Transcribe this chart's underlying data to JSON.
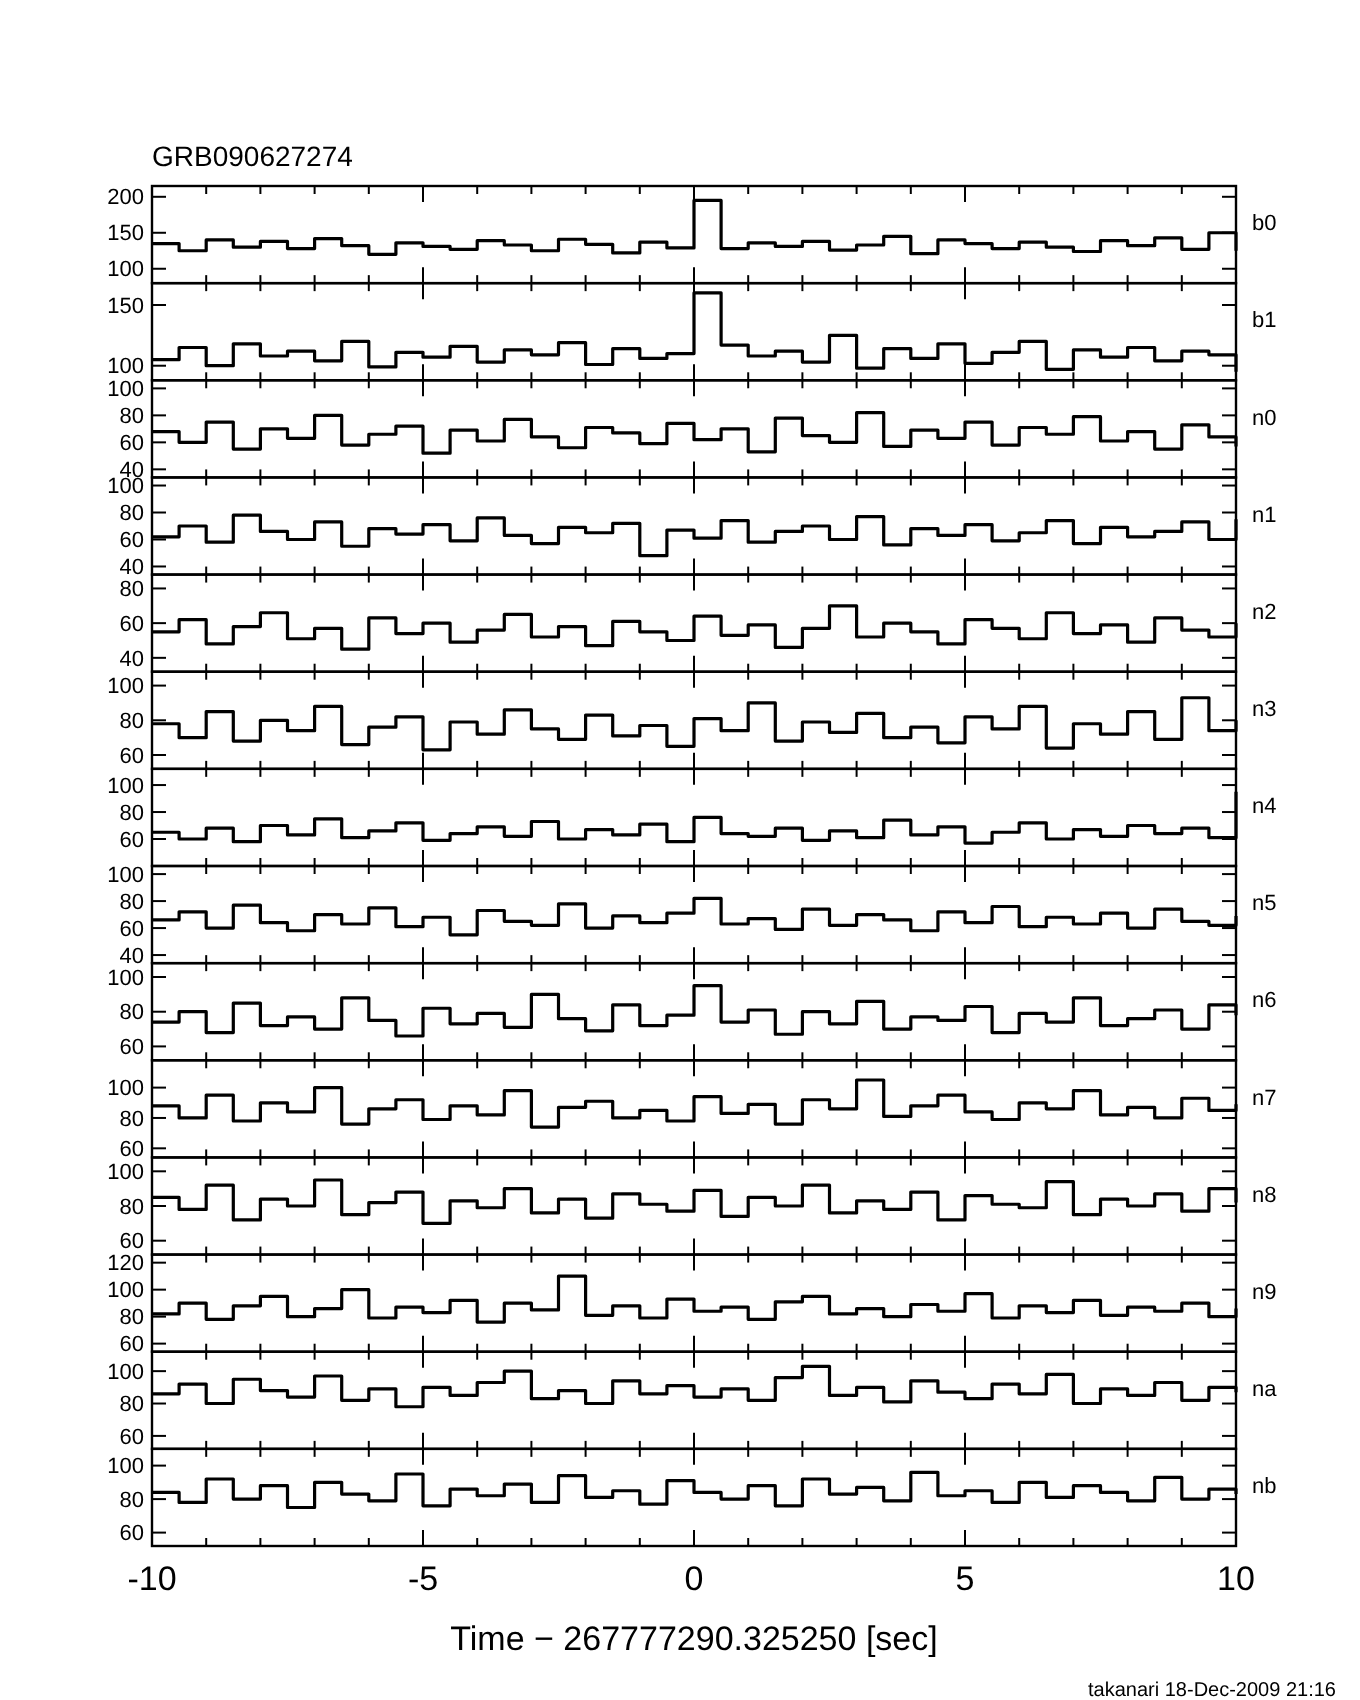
{
  "chart_data": [
    {
      "type": "step",
      "title": "GRB090627274",
      "ylabel": "b0",
      "xlim": [
        -10,
        10
      ],
      "ylim": [
        80,
        215
      ],
      "yticks": [
        100,
        150,
        200
      ],
      "tick_labels": "y",
      "xticks": [
        -10,
        {
          "value": -9,
          "label": null
        },
        {
          "value": -8,
          "label": null
        },
        {
          "value": -7,
          "label": null
        },
        {
          "value": -6,
          "label": null
        },
        -5,
        {
          "value": -4,
          "label": null
        },
        {
          "value": -3,
          "label": null
        },
        {
          "value": -2,
          "label": null
        },
        {
          "value": -1,
          "label": null
        },
        0,
        {
          "value": 1,
          "label": null
        },
        {
          "value": 2,
          "label": null
        },
        {
          "value": 3,
          "label": null
        },
        {
          "value": 4,
          "label": null
        },
        5,
        {
          "value": 6,
          "label": null
        },
        {
          "value": 7,
          "label": null
        },
        {
          "value": 8,
          "label": null
        },
        {
          "value": 9,
          "label": null
        },
        10
      ],
      "x": [
        -10,
        -9.5,
        -9,
        -8.5,
        -8,
        -7.5,
        -7,
        -6.5,
        -6,
        -5.5,
        -5,
        -4.5,
        -4,
        -3.5,
        -3,
        -2.5,
        -2,
        -1.5,
        -1,
        -0.5,
        0,
        0.5,
        1,
        1.5,
        2,
        2.5,
        3,
        3.5,
        4,
        4.5,
        5,
        5.5,
        6,
        6.5,
        7,
        7.5,
        8,
        8.5,
        9,
        9.5,
        10
      ],
      "values": [
        135,
        125,
        140,
        130,
        138,
        128,
        142,
        132,
        120,
        136,
        131,
        127,
        139,
        133,
        125,
        141,
        134,
        122,
        137,
        129,
        195,
        128,
        136,
        131,
        138,
        126,
        133,
        145,
        121,
        140,
        135,
        128,
        137,
        130,
        124,
        139,
        132,
        143,
        127,
        150,
        125
      ]
    },
    {
      "type": "step",
      "ylabel": "b1",
      "xlim": [
        -10,
        10
      ],
      "ylim": [
        88,
        168
      ],
      "yticks": [
        100,
        150
      ],
      "tick_labels": "y",
      "xticks": [
        -10,
        {
          "value": -9,
          "label": null
        },
        {
          "value": -8,
          "label": null
        },
        {
          "value": -7,
          "label": null
        },
        {
          "value": -6,
          "label": null
        },
        -5,
        {
          "value": -4,
          "label": null
        },
        {
          "value": -3,
          "label": null
        },
        {
          "value": -2,
          "label": null
        },
        {
          "value": -1,
          "label": null
        },
        0,
        {
          "value": 1,
          "label": null
        },
        {
          "value": 2,
          "label": null
        },
        {
          "value": 3,
          "label": null
        },
        {
          "value": 4,
          "label": null
        },
        5,
        {
          "value": 6,
          "label": null
        },
        {
          "value": 7,
          "label": null
        },
        {
          "value": 8,
          "label": null
        },
        {
          "value": 9,
          "label": null
        },
        10
      ],
      "x": [
        -10,
        -9.5,
        -9,
        -8.5,
        -8,
        -7.5,
        -7,
        -6.5,
        -6,
        -5.5,
        -5,
        -4.5,
        -4,
        -3.5,
        -3,
        -2.5,
        -2,
        -1.5,
        -1,
        -0.5,
        0,
        0.5,
        1,
        1.5,
        2,
        2.5,
        3,
        3.5,
        4,
        4.5,
        5,
        5.5,
        6,
        6.5,
        7,
        7.5,
        8,
        8.5,
        9,
        9.5,
        10
      ],
      "values": [
        105,
        115,
        100,
        118,
        108,
        112,
        104,
        120,
        99,
        111,
        107,
        116,
        103,
        113,
        109,
        119,
        101,
        114,
        106,
        110,
        160,
        117,
        108,
        112,
        103,
        125,
        98,
        114,
        106,
        118,
        102,
        111,
        120,
        97,
        113,
        107,
        115,
        104,
        112,
        109,
        95
      ]
    },
    {
      "type": "step",
      "ylabel": "n0",
      "xlim": [
        -10,
        10
      ],
      "ylim": [
        34,
        106
      ],
      "yticks": [
        40,
        60,
        80,
        100
      ],
      "tick_labels": "y",
      "xticks": [
        -10,
        {
          "value": -9,
          "label": null
        },
        {
          "value": -8,
          "label": null
        },
        {
          "value": -7,
          "label": null
        },
        {
          "value": -6,
          "label": null
        },
        -5,
        {
          "value": -4,
          "label": null
        },
        {
          "value": -3,
          "label": null
        },
        {
          "value": -2,
          "label": null
        },
        {
          "value": -1,
          "label": null
        },
        0,
        {
          "value": 1,
          "label": null
        },
        {
          "value": 2,
          "label": null
        },
        {
          "value": 3,
          "label": null
        },
        {
          "value": 4,
          "label": null
        },
        5,
        {
          "value": 6,
          "label": null
        },
        {
          "value": 7,
          "label": null
        },
        {
          "value": 8,
          "label": null
        },
        {
          "value": 9,
          "label": null
        },
        10
      ],
      "x": [
        -10,
        -9.5,
        -9,
        -8.5,
        -8,
        -7.5,
        -7,
        -6.5,
        -6,
        -5.5,
        -5,
        -4.5,
        -4,
        -3.5,
        -3,
        -2.5,
        -2,
        -1.5,
        -1,
        -0.5,
        0,
        0.5,
        1,
        1.5,
        2,
        2.5,
        3,
        3.5,
        4,
        4.5,
        5,
        5.5,
        6,
        6.5,
        7,
        7.5,
        8,
        8.5,
        9,
        9.5,
        10
      ],
      "values": [
        68,
        60,
        75,
        55,
        70,
        63,
        80,
        58,
        66,
        72,
        52,
        69,
        61,
        77,
        64,
        56,
        71,
        67,
        59,
        74,
        62,
        70,
        53,
        78,
        65,
        60,
        82,
        57,
        69,
        63,
        75,
        58,
        71,
        66,
        79,
        61,
        68,
        55,
        73,
        64,
        57
      ]
    },
    {
      "type": "step",
      "ylabel": "n1",
      "xlim": [
        -10,
        10
      ],
      "ylim": [
        34,
        106
      ],
      "yticks": [
        40,
        60,
        80,
        100
      ],
      "tick_labels": "y",
      "xticks": [
        -10,
        {
          "value": -9,
          "label": null
        },
        {
          "value": -8,
          "label": null
        },
        {
          "value": -7,
          "label": null
        },
        {
          "value": -6,
          "label": null
        },
        -5,
        {
          "value": -4,
          "label": null
        },
        {
          "value": -3,
          "label": null
        },
        {
          "value": -2,
          "label": null
        },
        {
          "value": -1,
          "label": null
        },
        0,
        {
          "value": 1,
          "label": null
        },
        {
          "value": 2,
          "label": null
        },
        {
          "value": 3,
          "label": null
        },
        {
          "value": 4,
          "label": null
        },
        5,
        {
          "value": 6,
          "label": null
        },
        {
          "value": 7,
          "label": null
        },
        {
          "value": 8,
          "label": null
        },
        {
          "value": 9,
          "label": null
        },
        10
      ],
      "x": [
        -10,
        -9.5,
        -9,
        -8.5,
        -8,
        -7.5,
        -7,
        -6.5,
        -6,
        -5.5,
        -5,
        -4.5,
        -4,
        -3.5,
        -3,
        -2.5,
        -2,
        -1.5,
        -1,
        -0.5,
        0,
        0.5,
        1,
        1.5,
        2,
        2.5,
        3,
        3.5,
        4,
        4.5,
        5,
        5.5,
        6,
        6.5,
        7,
        7.5,
        8,
        8.5,
        9,
        9.5,
        10
      ],
      "values": [
        62,
        70,
        58,
        78,
        66,
        60,
        73,
        55,
        68,
        64,
        71,
        59,
        76,
        63,
        57,
        69,
        65,
        72,
        48,
        67,
        61,
        74,
        58,
        66,
        70,
        60,
        77,
        56,
        68,
        63,
        71,
        59,
        65,
        74,
        57,
        69,
        62,
        66,
        73,
        60,
        75
      ]
    },
    {
      "type": "step",
      "ylabel": "n2",
      "xlim": [
        -10,
        10
      ],
      "ylim": [
        32,
        88
      ],
      "yticks": [
        40,
        60,
        80
      ],
      "tick_labels": "y",
      "xticks": [
        -10,
        {
          "value": -9,
          "label": null
        },
        {
          "value": -8,
          "label": null
        },
        {
          "value": -7,
          "label": null
        },
        {
          "value": -6,
          "label": null
        },
        -5,
        {
          "value": -4,
          "label": null
        },
        {
          "value": -3,
          "label": null
        },
        {
          "value": -2,
          "label": null
        },
        {
          "value": -1,
          "label": null
        },
        0,
        {
          "value": 1,
          "label": null
        },
        {
          "value": 2,
          "label": null
        },
        {
          "value": 3,
          "label": null
        },
        {
          "value": 4,
          "label": null
        },
        5,
        {
          "value": 6,
          "label": null
        },
        {
          "value": 7,
          "label": null
        },
        {
          "value": 8,
          "label": null
        },
        {
          "value": 9,
          "label": null
        },
        10
      ],
      "x": [
        -10,
        -9.5,
        -9,
        -8.5,
        -8,
        -7.5,
        -7,
        -6.5,
        -6,
        -5.5,
        -5,
        -4.5,
        -4,
        -3.5,
        -3,
        -2.5,
        -2,
        -1.5,
        -1,
        -0.5,
        0,
        0.5,
        1,
        1.5,
        2,
        2.5,
        3,
        3.5,
        4,
        4.5,
        5,
        5.5,
        6,
        6.5,
        7,
        7.5,
        8,
        8.5,
        9,
        9.5,
        10
      ],
      "values": [
        55,
        62,
        48,
        58,
        66,
        51,
        57,
        45,
        63,
        54,
        60,
        49,
        56,
        65,
        52,
        58,
        47,
        61,
        55,
        50,
        64,
        53,
        59,
        46,
        57,
        70,
        52,
        60,
        55,
        48,
        62,
        57,
        51,
        66,
        54,
        59,
        49,
        63,
        56,
        52,
        60
      ]
    },
    {
      "type": "step",
      "ylabel": "n3",
      "xlim": [
        -10,
        10
      ],
      "ylim": [
        52,
        108
      ],
      "yticks": [
        60,
        80,
        100
      ],
      "tick_labels": "y",
      "xticks": [
        -10,
        {
          "value": -9,
          "label": null
        },
        {
          "value": -8,
          "label": null
        },
        {
          "value": -7,
          "label": null
        },
        {
          "value": -6,
          "label": null
        },
        -5,
        {
          "value": -4,
          "label": null
        },
        {
          "value": -3,
          "label": null
        },
        {
          "value": -2,
          "label": null
        },
        {
          "value": -1,
          "label": null
        },
        0,
        {
          "value": 1,
          "label": null
        },
        {
          "value": 2,
          "label": null
        },
        {
          "value": 3,
          "label": null
        },
        {
          "value": 4,
          "label": null
        },
        5,
        {
          "value": 6,
          "label": null
        },
        {
          "value": 7,
          "label": null
        },
        {
          "value": 8,
          "label": null
        },
        {
          "value": 9,
          "label": null
        },
        10
      ],
      "x": [
        -10,
        -9.5,
        -9,
        -8.5,
        -8,
        -7.5,
        -7,
        -6.5,
        -6,
        -5.5,
        -5,
        -4.5,
        -4,
        -3.5,
        -3,
        -2.5,
        -2,
        -1.5,
        -1,
        -0.5,
        0,
        0.5,
        1,
        1.5,
        2,
        2.5,
        3,
        3.5,
        4,
        4.5,
        5,
        5.5,
        6,
        6.5,
        7,
        7.5,
        8,
        8.5,
        9,
        9.5,
        10
      ],
      "values": [
        78,
        70,
        85,
        68,
        80,
        74,
        88,
        66,
        76,
        82,
        63,
        79,
        72,
        86,
        75,
        69,
        83,
        71,
        77,
        65,
        81,
        74,
        90,
        68,
        79,
        73,
        84,
        70,
        76,
        67,
        82,
        75,
        88,
        64,
        78,
        72,
        85,
        69,
        93,
        74,
        80
      ]
    },
    {
      "type": "step",
      "ylabel": "n4",
      "xlim": [
        -10,
        10
      ],
      "ylim": [
        40,
        112
      ],
      "yticks": [
        60,
        80,
        100
      ],
      "tick_labels": "y",
      "xticks": [
        -10,
        {
          "value": -9,
          "label": null
        },
        {
          "value": -8,
          "label": null
        },
        {
          "value": -7,
          "label": null
        },
        {
          "value": -6,
          "label": null
        },
        -5,
        {
          "value": -4,
          "label": null
        },
        {
          "value": -3,
          "label": null
        },
        {
          "value": -2,
          "label": null
        },
        {
          "value": -1,
          "label": null
        },
        0,
        {
          "value": 1,
          "label": null
        },
        {
          "value": 2,
          "label": null
        },
        {
          "value": 3,
          "label": null
        },
        {
          "value": 4,
          "label": null
        },
        5,
        {
          "value": 6,
          "label": null
        },
        {
          "value": 7,
          "label": null
        },
        {
          "value": 8,
          "label": null
        },
        {
          "value": 9,
          "label": null
        },
        10
      ],
      "x": [
        -10,
        -9.5,
        -9,
        -8.5,
        -8,
        -7.5,
        -7,
        -6.5,
        -6,
        -5.5,
        -5,
        -4.5,
        -4,
        -3.5,
        -3,
        -2.5,
        -2,
        -1.5,
        -1,
        -0.5,
        0,
        0.5,
        1,
        1.5,
        2,
        2.5,
        3,
        3.5,
        4,
        4.5,
        5,
        5.5,
        6,
        6.5,
        7,
        7.5,
        8,
        8.5,
        9,
        9.5,
        10
      ],
      "values": [
        65,
        60,
        68,
        58,
        70,
        63,
        75,
        61,
        66,
        72,
        59,
        64,
        69,
        62,
        73,
        60,
        67,
        63,
        71,
        58,
        76,
        64,
        62,
        68,
        59,
        66,
        61,
        74,
        63,
        69,
        57,
        65,
        72,
        60,
        67,
        62,
        70,
        64,
        68,
        61,
        95
      ]
    },
    {
      "type": "step",
      "ylabel": "n5",
      "xlim": [
        -10,
        10
      ],
      "ylim": [
        34,
        106
      ],
      "yticks": [
        40,
        60,
        80,
        100
      ],
      "tick_labels": "y",
      "xticks": [
        -10,
        {
          "value": -9,
          "label": null
        },
        {
          "value": -8,
          "label": null
        },
        {
          "value": -7,
          "label": null
        },
        {
          "value": -6,
          "label": null
        },
        -5,
        {
          "value": -4,
          "label": null
        },
        {
          "value": -3,
          "label": null
        },
        {
          "value": -2,
          "label": null
        },
        {
          "value": -1,
          "label": null
        },
        0,
        {
          "value": 1,
          "label": null
        },
        {
          "value": 2,
          "label": null
        },
        {
          "value": 3,
          "label": null
        },
        {
          "value": 4,
          "label": null
        },
        5,
        {
          "value": 6,
          "label": null
        },
        {
          "value": 7,
          "label": null
        },
        {
          "value": 8,
          "label": null
        },
        {
          "value": 9,
          "label": null
        },
        10
      ],
      "x": [
        -10,
        -9.5,
        -9,
        -8.5,
        -8,
        -7.5,
        -7,
        -6.5,
        -6,
        -5.5,
        -5,
        -4.5,
        -4,
        -3.5,
        -3,
        -2.5,
        -2,
        -1.5,
        -1,
        -0.5,
        0,
        0.5,
        1,
        1.5,
        2,
        2.5,
        3,
        3.5,
        4,
        4.5,
        5,
        5.5,
        6,
        6.5,
        7,
        7.5,
        8,
        8.5,
        9,
        9.5,
        10
      ],
      "values": [
        66,
        72,
        60,
        77,
        64,
        58,
        70,
        63,
        75,
        61,
        68,
        55,
        73,
        65,
        62,
        78,
        60,
        69,
        64,
        71,
        82,
        63,
        67,
        59,
        74,
        62,
        70,
        66,
        58,
        72,
        64,
        76,
        61,
        68,
        63,
        71,
        60,
        74,
        65,
        62,
        69
      ]
    },
    {
      "type": "step",
      "ylabel": "n6",
      "xlim": [
        -10,
        10
      ],
      "ylim": [
        52,
        108
      ],
      "yticks": [
        60,
        80,
        100
      ],
      "tick_labels": "y",
      "xticks": [
        -10,
        {
          "value": -9,
          "label": null
        },
        {
          "value": -8,
          "label": null
        },
        {
          "value": -7,
          "label": null
        },
        {
          "value": -6,
          "label": null
        },
        -5,
        {
          "value": -4,
          "label": null
        },
        {
          "value": -3,
          "label": null
        },
        {
          "value": -2,
          "label": null
        },
        {
          "value": -1,
          "label": null
        },
        0,
        {
          "value": 1,
          "label": null
        },
        {
          "value": 2,
          "label": null
        },
        {
          "value": 3,
          "label": null
        },
        {
          "value": 4,
          "label": null
        },
        5,
        {
          "value": 6,
          "label": null
        },
        {
          "value": 7,
          "label": null
        },
        {
          "value": 8,
          "label": null
        },
        {
          "value": 9,
          "label": null
        },
        10
      ],
      "x": [
        -10,
        -9.5,
        -9,
        -8.5,
        -8,
        -7.5,
        -7,
        -6.5,
        -6,
        -5.5,
        -5,
        -4.5,
        -4,
        -3.5,
        -3,
        -2.5,
        -2,
        -1.5,
        -1,
        -0.5,
        0,
        0.5,
        1,
        1.5,
        2,
        2.5,
        3,
        3.5,
        4,
        4.5,
        5,
        5.5,
        6,
        6.5,
        7,
        7.5,
        8,
        8.5,
        9,
        9.5,
        10
      ],
      "values": [
        74,
        80,
        68,
        85,
        72,
        77,
        70,
        88,
        75,
        66,
        82,
        73,
        79,
        71,
        90,
        76,
        69,
        84,
        72,
        78,
        95,
        74,
        81,
        67,
        80,
        73,
        86,
        70,
        77,
        75,
        83,
        68,
        79,
        74,
        88,
        72,
        76,
        81,
        70,
        84,
        78
      ]
    },
    {
      "type": "step",
      "ylabel": "n7",
      "xlim": [
        -10,
        10
      ],
      "ylim": [
        54,
        118
      ],
      "yticks": [
        60,
        80,
        100
      ],
      "tick_labels": "y",
      "xticks": [
        -10,
        {
          "value": -9,
          "label": null
        },
        {
          "value": -8,
          "label": null
        },
        {
          "value": -7,
          "label": null
        },
        {
          "value": -6,
          "label": null
        },
        -5,
        {
          "value": -4,
          "label": null
        },
        {
          "value": -3,
          "label": null
        },
        {
          "value": -2,
          "label": null
        },
        {
          "value": -1,
          "label": null
        },
        0,
        {
          "value": 1,
          "label": null
        },
        {
          "value": 2,
          "label": null
        },
        {
          "value": 3,
          "label": null
        },
        {
          "value": 4,
          "label": null
        },
        5,
        {
          "value": 6,
          "label": null
        },
        {
          "value": 7,
          "label": null
        },
        {
          "value": 8,
          "label": null
        },
        {
          "value": 9,
          "label": null
        },
        10
      ],
      "x": [
        -10,
        -9.5,
        -9,
        -8.5,
        -8,
        -7.5,
        -7,
        -6.5,
        -6,
        -5.5,
        -5,
        -4.5,
        -4,
        -3.5,
        -3,
        -2.5,
        -2,
        -1.5,
        -1,
        -0.5,
        0,
        0.5,
        1,
        1.5,
        2,
        2.5,
        3,
        3.5,
        4,
        4.5,
        5,
        5.5,
        6,
        6.5,
        7,
        7.5,
        8,
        8.5,
        9,
        9.5,
        10
      ],
      "values": [
        88,
        80,
        95,
        78,
        90,
        84,
        100,
        76,
        86,
        92,
        79,
        88,
        82,
        98,
        74,
        87,
        91,
        80,
        85,
        78,
        94,
        83,
        89,
        76,
        92,
        86,
        105,
        81,
        88,
        95,
        84,
        79,
        90,
        86,
        98,
        82,
        87,
        80,
        93,
        85,
        89
      ]
    },
    {
      "type": "step",
      "ylabel": "n8",
      "xlim": [
        -10,
        10
      ],
      "ylim": [
        52,
        108
      ],
      "yticks": [
        60,
        80,
        100
      ],
      "tick_labels": "y",
      "xticks": [
        -10,
        {
          "value": -9,
          "label": null
        },
        {
          "value": -8,
          "label": null
        },
        {
          "value": -7,
          "label": null
        },
        {
          "value": -6,
          "label": null
        },
        -5,
        {
          "value": -4,
          "label": null
        },
        {
          "value": -3,
          "label": null
        },
        {
          "value": -2,
          "label": null
        },
        {
          "value": -1,
          "label": null
        },
        0,
        {
          "value": 1,
          "label": null
        },
        {
          "value": 2,
          "label": null
        },
        {
          "value": 3,
          "label": null
        },
        {
          "value": 4,
          "label": null
        },
        5,
        {
          "value": 6,
          "label": null
        },
        {
          "value": 7,
          "label": null
        },
        {
          "value": 8,
          "label": null
        },
        {
          "value": 9,
          "label": null
        },
        10
      ],
      "x": [
        -10,
        -9.5,
        -9,
        -8.5,
        -8,
        -7.5,
        -7,
        -6.5,
        -6,
        -5.5,
        -5,
        -4.5,
        -4,
        -3.5,
        -3,
        -2.5,
        -2,
        -1.5,
        -1,
        -0.5,
        0,
        0.5,
        1,
        1.5,
        2,
        2.5,
        3,
        3.5,
        4,
        4.5,
        5,
        5.5,
        6,
        6.5,
        7,
        7.5,
        8,
        8.5,
        9,
        9.5,
        10
      ],
      "values": [
        85,
        78,
        92,
        72,
        84,
        80,
        95,
        75,
        82,
        88,
        70,
        83,
        79,
        90,
        76,
        84,
        73,
        87,
        81,
        77,
        89,
        74,
        85,
        80,
        92,
        76,
        83,
        78,
        88,
        72,
        86,
        81,
        79,
        94,
        75,
        84,
        80,
        87,
        77,
        90,
        82
      ]
    },
    {
      "type": "step",
      "ylabel": "n9",
      "xlim": [
        -10,
        10
      ],
      "ylim": [
        54,
        126
      ],
      "yticks": [
        60,
        80,
        100,
        120
      ],
      "tick_labels": "y",
      "xticks": [
        -10,
        {
          "value": -9,
          "label": null
        },
        {
          "value": -8,
          "label": null
        },
        {
          "value": -7,
          "label": null
        },
        {
          "value": -6,
          "label": null
        },
        -5,
        {
          "value": -4,
          "label": null
        },
        {
          "value": -3,
          "label": null
        },
        {
          "value": -2,
          "label": null
        },
        {
          "value": -1,
          "label": null
        },
        0,
        {
          "value": 1,
          "label": null
        },
        {
          "value": 2,
          "label": null
        },
        {
          "value": 3,
          "label": null
        },
        {
          "value": 4,
          "label": null
        },
        5,
        {
          "value": 6,
          "label": null
        },
        {
          "value": 7,
          "label": null
        },
        {
          "value": 8,
          "label": null
        },
        {
          "value": 9,
          "label": null
        },
        10
      ],
      "x": [
        -10,
        -9.5,
        -9,
        -8.5,
        -8,
        -7.5,
        -7,
        -6.5,
        -6,
        -5.5,
        -5,
        -4.5,
        -4,
        -3.5,
        -3,
        -2.5,
        -2,
        -1.5,
        -1,
        -0.5,
        0,
        0.5,
        1,
        1.5,
        2,
        2.5,
        3,
        3.5,
        4,
        4.5,
        5,
        5.5,
        6,
        6.5,
        7,
        7.5,
        8,
        8.5,
        9,
        9.5,
        10
      ],
      "values": [
        82,
        90,
        78,
        88,
        95,
        80,
        86,
        100,
        79,
        87,
        83,
        92,
        76,
        90,
        85,
        110,
        81,
        88,
        79,
        93,
        84,
        87,
        78,
        91,
        95,
        82,
        86,
        80,
        89,
        84,
        97,
        79,
        88,
        83,
        92,
        81,
        87,
        84,
        90,
        80,
        86
      ]
    },
    {
      "type": "step",
      "ylabel": "na",
      "xlim": [
        -10,
        10
      ],
      "ylim": [
        52,
        112
      ],
      "yticks": [
        60,
        80,
        100
      ],
      "tick_labels": "y",
      "xticks": [
        -10,
        {
          "value": -9,
          "label": null
        },
        {
          "value": -8,
          "label": null
        },
        {
          "value": -7,
          "label": null
        },
        {
          "value": -6,
          "label": null
        },
        -5,
        {
          "value": -4,
          "label": null
        },
        {
          "value": -3,
          "label": null
        },
        {
          "value": -2,
          "label": null
        },
        {
          "value": -1,
          "label": null
        },
        0,
        {
          "value": 1,
          "label": null
        },
        {
          "value": 2,
          "label": null
        },
        {
          "value": 3,
          "label": null
        },
        {
          "value": 4,
          "label": null
        },
        5,
        {
          "value": 6,
          "label": null
        },
        {
          "value": 7,
          "label": null
        },
        {
          "value": 8,
          "label": null
        },
        {
          "value": 9,
          "label": null
        },
        10
      ],
      "x": [
        -10,
        -9.5,
        -9,
        -8.5,
        -8,
        -7.5,
        -7,
        -6.5,
        -6,
        -5.5,
        -5,
        -4.5,
        -4,
        -3.5,
        -3,
        -2.5,
        -2,
        -1.5,
        -1,
        -0.5,
        0,
        0.5,
        1,
        1.5,
        2,
        2.5,
        3,
        3.5,
        4,
        4.5,
        5,
        5.5,
        6,
        6.5,
        7,
        7.5,
        8,
        8.5,
        9,
        9.5,
        10
      ],
      "values": [
        86,
        92,
        80,
        95,
        88,
        84,
        97,
        82,
        89,
        78,
        90,
        85,
        93,
        100,
        83,
        88,
        80,
        94,
        86,
        91,
        84,
        89,
        82,
        96,
        103,
        85,
        90,
        81,
        94,
        87,
        83,
        92,
        86,
        98,
        80,
        89,
        85,
        93,
        82,
        90,
        87
      ]
    },
    {
      "type": "step",
      "ylabel": "nb",
      "xlabel": "Time − 267777290.325250 [sec]",
      "annotations": [
        "takanari 18-Dec-2009 21:16"
      ],
      "xlim": [
        -10,
        10
      ],
      "ylim": [
        52,
        110
      ],
      "yticks": [
        60,
        80,
        100
      ],
      "xticks": [
        -10,
        {
          "value": -9,
          "label": null
        },
        {
          "value": -8,
          "label": null
        },
        {
          "value": -7,
          "label": null
        },
        {
          "value": -6,
          "label": null
        },
        -5,
        {
          "value": -4,
          "label": null
        },
        {
          "value": -3,
          "label": null
        },
        {
          "value": -2,
          "label": null
        },
        {
          "value": -1,
          "label": null
        },
        0,
        {
          "value": 1,
          "label": null
        },
        {
          "value": 2,
          "label": null
        },
        {
          "value": 3,
          "label": null
        },
        {
          "value": 4,
          "label": null
        },
        5,
        {
          "value": 6,
          "label": null
        },
        {
          "value": 7,
          "label": null
        },
        {
          "value": 8,
          "label": null
        },
        {
          "value": 9,
          "label": null
        },
        10
      ],
      "x": [
        -10,
        -9.5,
        -9,
        -8.5,
        -8,
        -7.5,
        -7,
        -6.5,
        -6,
        -5.5,
        -5,
        -4.5,
        -4,
        -3.5,
        -3,
        -2.5,
        -2,
        -1.5,
        -1,
        -0.5,
        0,
        0.5,
        1,
        1.5,
        2,
        2.5,
        3,
        3.5,
        4,
        4.5,
        5,
        5.5,
        6,
        6.5,
        7,
        7.5,
        8,
        8.5,
        9,
        9.5,
        10
      ],
      "values": [
        84,
        78,
        92,
        80,
        88,
        75,
        90,
        83,
        79,
        95,
        76,
        86,
        82,
        89,
        78,
        94,
        81,
        85,
        77,
        91,
        84,
        80,
        88,
        76,
        92,
        83,
        87,
        79,
        96,
        82,
        85,
        78,
        90,
        81,
        88,
        84,
        79,
        93,
        80,
        86,
        83
      ]
    }
  ]
}
